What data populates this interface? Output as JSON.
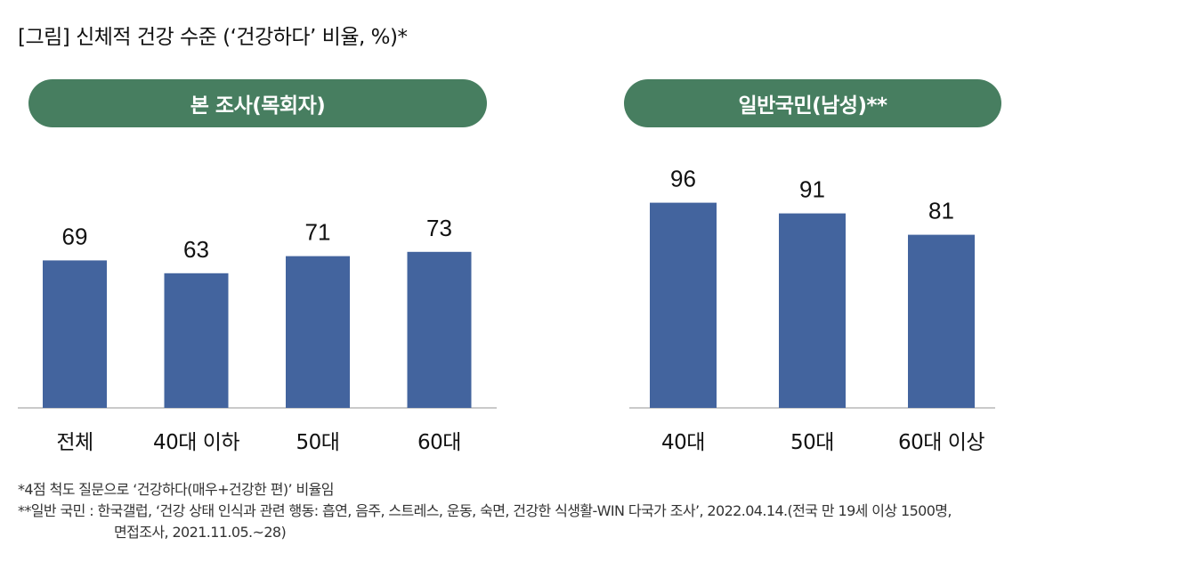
{
  "title": "[그림] 신체적 건강 수준 (‘건강하다’ 비율, %)*",
  "panels": [
    {
      "label": "본 조사(목회자)"
    },
    {
      "label": "일반국민(남성)**"
    }
  ],
  "chart_data": [
    {
      "type": "bar",
      "title": "본 조사(목회자)",
      "categories": [
        "전체",
        "40대 이하",
        "50대",
        "60대"
      ],
      "values": [
        69,
        63,
        71,
        73
      ],
      "color": "#43649e",
      "ylim": [
        0,
        100
      ]
    },
    {
      "type": "bar",
      "title": "일반국민(남성)**",
      "categories": [
        "40대",
        "50대",
        "60대 이상"
      ],
      "values": [
        96,
        91,
        81
      ],
      "color": "#43649e",
      "ylim": [
        0,
        100
      ]
    }
  ],
  "notes": {
    "line1": "*4점 척도 질문으로 ‘건강하다(매우+건강한 편)’ 비율임",
    "line2": "**일반 국민 : 한국갤럽, ‘건강 상태 인식과 관련 행동: 흡연, 음주, 스트레스, 운동, 숙면, 건강한 식생활-WIN 다국가 조사’, 2022.04.14.(전국 만 19세 이상 1500명,",
    "line3": "면접조사, 2021.11.05.~28)"
  }
}
